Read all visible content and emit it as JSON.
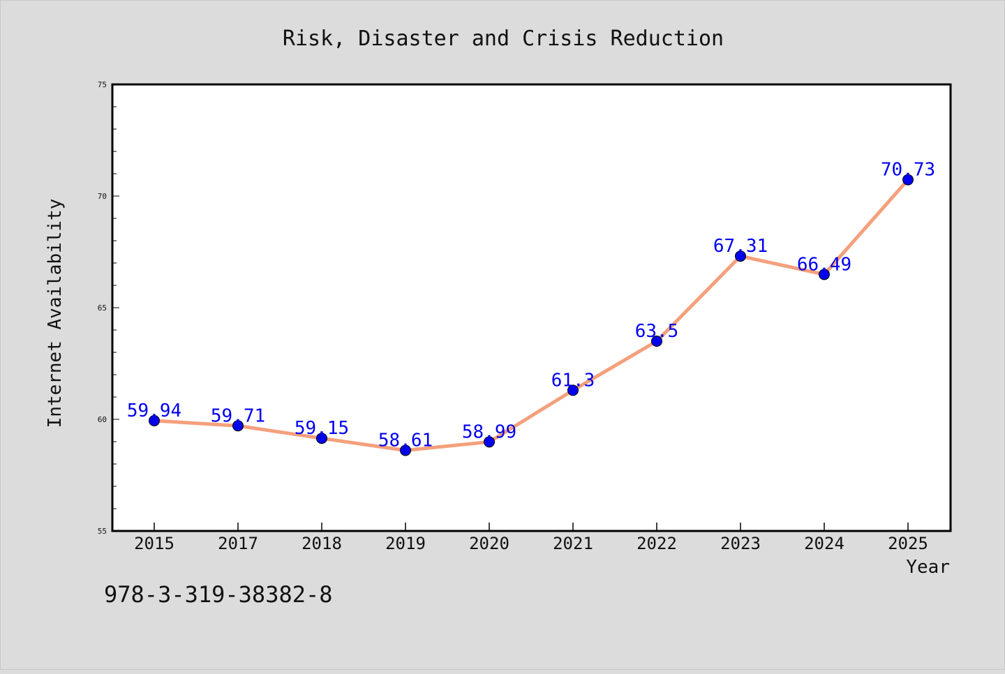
{
  "chart_data": {
    "type": "line",
    "title": "Risk, Disaster and Crisis Reduction",
    "xlabel": "Year",
    "ylabel": "Internet Availability",
    "categories": [
      "2015",
      "2017",
      "2018",
      "2019",
      "2020",
      "2021",
      "2022",
      "2023",
      "2024",
      "2025"
    ],
    "series": [
      {
        "values": [
          59.94,
          59.71,
          59.15,
          58.61,
          58.99,
          61.3,
          63.5,
          67.31,
          66.49,
          70.73
        ]
      }
    ],
    "data_labels": [
      "59.94",
      "59.71",
      "59.15",
      "58.61",
      "58.99",
      "61.3",
      "63.5",
      "67.31",
      "66.49",
      "70.73"
    ],
    "ylim": [
      55,
      75
    ],
    "yticks": [
      55,
      60,
      65,
      70,
      75
    ],
    "grid": false,
    "colors": {
      "line": "#f4a07c",
      "marker": "#0000ee",
      "label": "#0000ee",
      "background": "#dcdcdc",
      "plot_bg": "#ffffff"
    }
  },
  "footer_text": "978-3-319-38382-8"
}
